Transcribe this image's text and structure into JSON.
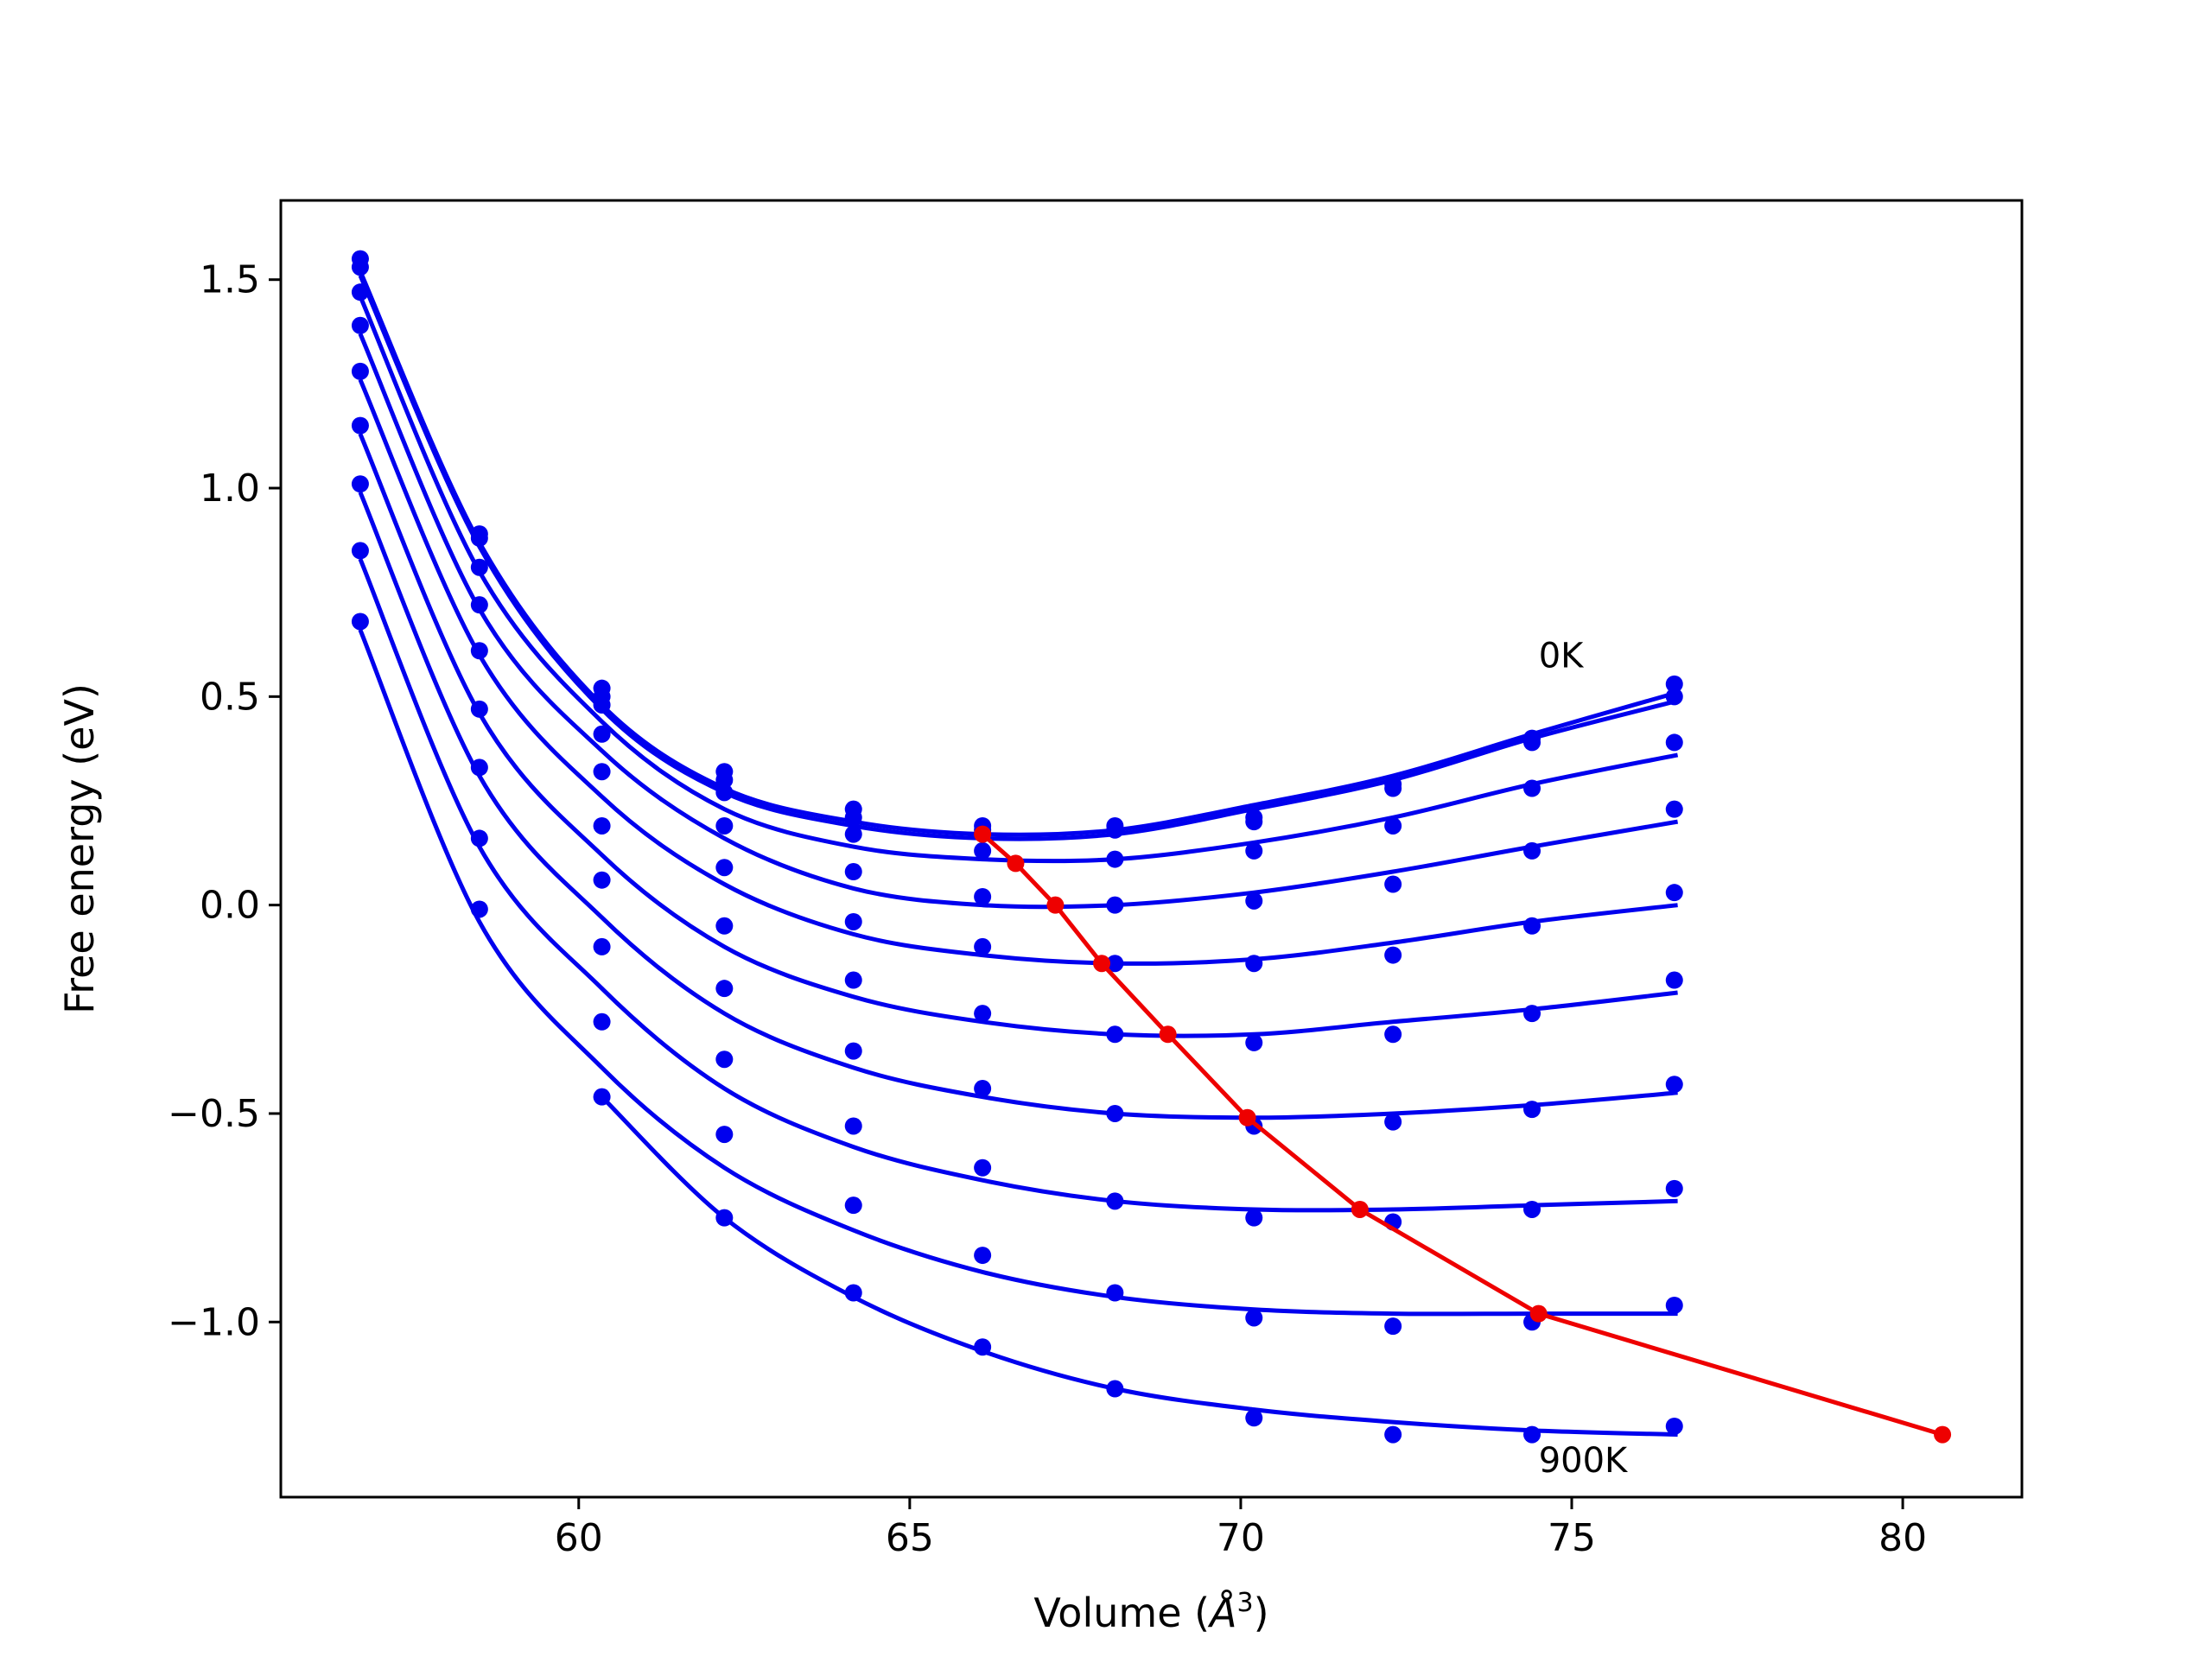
{
  "chart_data": {
    "type": "line",
    "title": "",
    "xlabel": "Volume (Å³)",
    "xlabel_base": "Volume (",
    "xlabel_unit": "Å",
    "xlabel_exp": "3",
    "xlabel_close": ")",
    "ylabel": "Free energy (eV)",
    "xlim": [
      55.5,
      81.8
    ],
    "ylim": [
      -1.42,
      1.69
    ],
    "x_ticks": [
      60,
      65,
      70,
      75,
      80
    ],
    "x_tick_labels": [
      "60",
      "65",
      "70",
      "75",
      "80"
    ],
    "y_ticks": [
      1.5,
      1.0,
      0.5,
      0.0,
      -0.5,
      -1.0
    ],
    "y_tick_labels": [
      "1.5",
      "1.0",
      "0.5",
      "0.0",
      "−0.5",
      "−1.0"
    ],
    "grid": false,
    "legend": "none",
    "annotations": [
      {
        "text": "0K",
        "x": 74.5,
        "y": 0.57
      },
      {
        "text": "900K",
        "x": 74.5,
        "y": -1.36
      }
    ],
    "volumes": [
      56.7,
      58.5,
      60.35,
      62.2,
      64.15,
      66.1,
      68.1,
      70.2,
      72.3,
      74.4,
      76.55
    ],
    "series": [
      {
        "color": "#0000ee",
        "points": [
          1.55,
          0.89,
          0.52,
          0.32,
          0.23,
          0.19,
          0.19,
          0.21,
          0.29,
          0.4,
          0.53
        ],
        "fit": [
          1.52,
          0.87,
          0.48,
          0.28,
          0.2,
          0.17,
          0.18,
          0.24,
          0.31,
          0.41,
          0.51
        ]
      },
      {
        "color": "#0000ee",
        "points": [
          1.53,
          0.88,
          0.5,
          0.3,
          0.21,
          0.18,
          0.18,
          0.2,
          0.28,
          0.39,
          0.5
        ],
        "fit": [
          1.51,
          0.86,
          0.47,
          0.27,
          0.19,
          0.16,
          0.17,
          0.23,
          0.3,
          0.4,
          0.49
        ]
      },
      {
        "color": "#0000ee",
        "points": [
          1.47,
          0.81,
          0.48,
          0.27,
          0.17,
          0.13,
          0.11,
          0.13,
          0.19,
          0.28,
          0.39
        ],
        "fit": [
          1.46,
          0.8,
          0.44,
          0.23,
          0.14,
          0.11,
          0.11,
          0.15,
          0.21,
          0.29,
          0.36
        ]
      },
      {
        "color": "#0000ee",
        "points": [
          1.39,
          0.72,
          0.41,
          0.19,
          0.08,
          0.02,
          0.0,
          0.01,
          0.05,
          0.13,
          0.23
        ],
        "fit": [
          1.37,
          0.71,
          0.37,
          0.16,
          0.04,
          0.0,
          0.0,
          0.03,
          0.08,
          0.14,
          0.2
        ]
      },
      {
        "color": "#0000ee",
        "points": [
          1.28,
          0.61,
          0.32,
          0.09,
          -0.04,
          -0.1,
          -0.14,
          -0.14,
          -0.12,
          -0.05,
          0.03
        ],
        "fit": [
          1.26,
          0.6,
          0.26,
          0.05,
          -0.07,
          -0.12,
          -0.14,
          -0.13,
          -0.09,
          -0.04,
          0.0
        ]
      },
      {
        "color": "#0000ee",
        "points": [
          1.15,
          0.47,
          0.19,
          -0.05,
          -0.18,
          -0.26,
          -0.31,
          -0.33,
          -0.31,
          -0.26,
          -0.18
        ],
        "fit": [
          1.13,
          0.46,
          0.12,
          -0.1,
          -0.22,
          -0.28,
          -0.31,
          -0.31,
          -0.28,
          -0.25,
          -0.21
        ]
      },
      {
        "color": "#0000ee",
        "points": [
          1.01,
          0.33,
          0.06,
          -0.2,
          -0.35,
          -0.44,
          -0.5,
          -0.53,
          -0.52,
          -0.49,
          -0.43
        ],
        "fit": [
          0.99,
          0.31,
          -0.03,
          -0.26,
          -0.39,
          -0.46,
          -0.5,
          -0.51,
          -0.5,
          -0.48,
          -0.45
        ]
      },
      {
        "color": "#0000ee",
        "points": [
          0.85,
          0.16,
          -0.1,
          -0.37,
          -0.53,
          -0.63,
          -0.71,
          -0.75,
          -0.76,
          -0.73,
          -0.68
        ],
        "fit": [
          0.83,
          0.14,
          -0.2,
          -0.44,
          -0.58,
          -0.66,
          -0.71,
          -0.73,
          -0.73,
          -0.72,
          -0.71
        ]
      },
      {
        "color": "#0000ee",
        "points": [
          0.68,
          -0.01,
          -0.28,
          -0.55,
          -0.72,
          -0.84,
          -0.93,
          -0.99,
          -1.01,
          -1.0,
          -0.96
        ],
        "fit": [
          0.66,
          -0.04,
          -0.39,
          -0.63,
          -0.78,
          -0.88,
          -0.94,
          -0.97,
          -0.98,
          -0.98,
          -0.98
        ]
      },
      {
        "color": "#0000ee",
        "points": [
          null,
          null,
          -0.46,
          -0.75,
          -0.93,
          -1.06,
          -1.16,
          -1.23,
          -1.27,
          -1.27,
          -1.25
        ],
        "fit": [
          null,
          null,
          -0.46,
          -0.75,
          -0.94,
          -1.07,
          -1.16,
          -1.21,
          -1.24,
          -1.26,
          -1.27
        ]
      }
    ],
    "minima_series": {
      "color": "#ee0000",
      "x": [
        66.1,
        66.6,
        67.2,
        67.9,
        68.9,
        70.1,
        71.8,
        74.5,
        80.6
      ],
      "y": [
        0.17,
        0.1,
        0.0,
        -0.14,
        -0.31,
        -0.51,
        -0.73,
        -0.98,
        -1.27
      ]
    }
  }
}
